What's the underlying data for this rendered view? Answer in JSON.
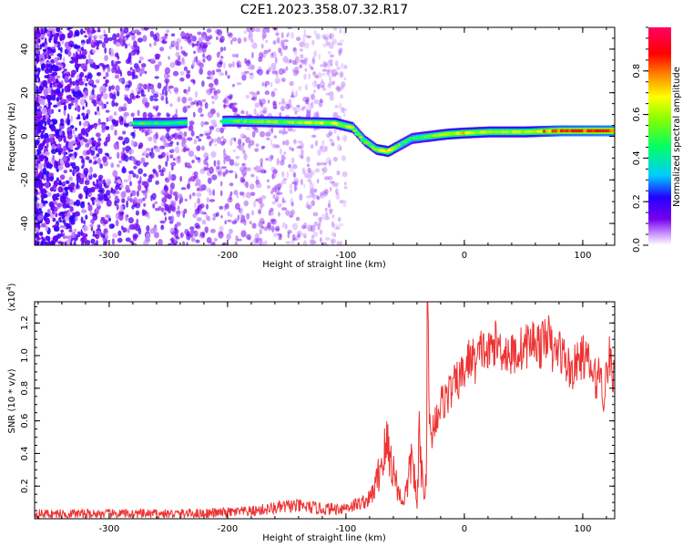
{
  "title": "C2E1.2023.358.07.32.R17",
  "chart_data": [
    {
      "type": "heatmap",
      "xlabel": "Height of straight line (km)",
      "ylabel": "Frequency (Hz)",
      "xlim": [
        -363,
        127
      ],
      "ylim": [
        -50,
        50
      ],
      "xticks": [
        -300,
        -200,
        -100,
        0,
        100
      ],
      "yticks": [
        -40,
        -20,
        0,
        20,
        40
      ],
      "grid": false,
      "colorbar": {
        "label": "Normalized spectral amplitude",
        "range": [
          0,
          1
        ],
        "ticks": [
          0.0,
          0.2,
          0.4,
          0.6,
          0.8
        ],
        "colors": [
          "#ffffff",
          "#cc99ff",
          "#7700ee",
          "#2200ff",
          "#00ccff",
          "#00ff66",
          "#88ff00",
          "#ffff00",
          "#ff8800",
          "#ff0000",
          "#ff0066"
        ]
      },
      "ridge": {
        "x": [
          -280,
          -250,
          -200,
          -150,
          -110,
          -95,
          -85,
          -75,
          -65,
          -55,
          -45,
          -30,
          -15,
          0,
          20,
          50,
          80,
          127
        ],
        "y": [
          6,
          6,
          7,
          6.5,
          6,
          4,
          -2,
          -6,
          -7,
          -4,
          -1,
          0,
          1,
          1.5,
          2,
          2,
          2.5,
          2.5
        ],
        "amplitude": [
          0.5,
          0.5,
          0.55,
          0.6,
          0.7,
          0.6,
          0.55,
          0.65,
          0.75,
          0.55,
          0.5,
          0.6,
          0.7,
          0.75,
          0.65,
          0.7,
          0.9,
          0.95
        ]
      },
      "noise_region_x": [
        -363,
        -100
      ]
    },
    {
      "type": "line",
      "xlabel": "Height of straight line (km)",
      "ylabel": "SNR (10 * v/v)",
      "y_scale_label": "(x10^4)",
      "xlim": [
        -363,
        127
      ],
      "ylim": [
        0,
        1.33
      ],
      "xticks": [
        -300,
        -200,
        -100,
        0,
        100
      ],
      "yticks": [
        0.2,
        0.4,
        0.6,
        0.8,
        1.0,
        1.2
      ],
      "grid": false,
      "series": [
        {
          "color": "#ee3333",
          "x": [
            -363,
            -300,
            -250,
            -210,
            -180,
            -165,
            -145,
            -130,
            -120,
            -110,
            -100,
            -90,
            -80,
            -75,
            -70,
            -65,
            -60,
            -55,
            -52,
            -48,
            -44,
            -42,
            -40,
            -38,
            -36,
            -34,
            -32,
            -31,
            -30,
            -28,
            -25,
            -20,
            -15,
            -10,
            -5,
            0,
            5,
            10,
            15,
            20,
            25,
            30,
            40,
            50,
            60,
            65,
            70,
            75,
            80,
            90,
            100,
            105,
            110,
            115,
            118,
            122,
            125,
            127
          ],
          "y": [
            0.03,
            0.03,
            0.03,
            0.035,
            0.045,
            0.06,
            0.08,
            0.07,
            0.06,
            0.06,
            0.07,
            0.09,
            0.12,
            0.2,
            0.35,
            0.45,
            0.3,
            0.15,
            0.1,
            0.2,
            0.4,
            0.25,
            0.05,
            0.5,
            0.3,
            0.1,
            0.4,
            1.33,
            0.6,
            0.5,
            0.6,
            0.7,
            0.75,
            0.8,
            0.85,
            0.9,
            1.0,
            0.95,
            1.05,
            1.0,
            1.08,
            1.05,
            1.0,
            1.05,
            1.1,
            1.05,
            1.15,
            1.0,
            1.05,
            0.9,
            1.0,
            0.95,
            0.85,
            0.9,
            0.75,
            1.0,
            0.9,
            0.82
          ]
        }
      ]
    }
  ]
}
